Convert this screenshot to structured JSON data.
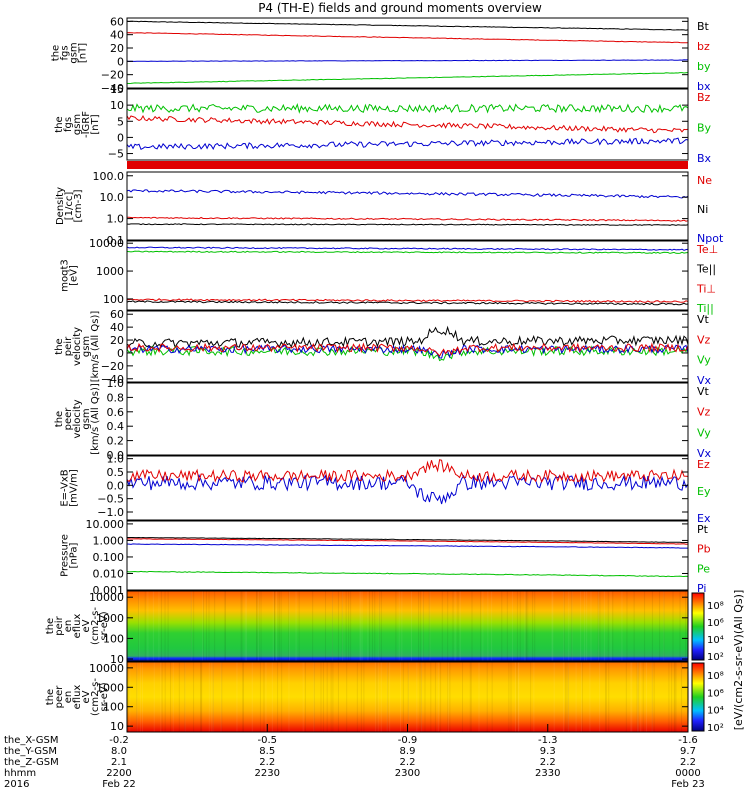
{
  "title": "P4 (TH-E) fields and ground moments overview",
  "colors": {
    "black": "#000000",
    "red": "#e00000",
    "green": "#00c000",
    "blue": "#0000d0"
  },
  "colorbar_label": "[eV/(cm2-s-sr-eV)(All Qs)]",
  "colorbar_ticks": [
    "10⁸",
    "10⁶",
    "10⁴",
    "10²"
  ],
  "x_axis_ticks": [
    "2200",
    "2230",
    "2300",
    "2330",
    "0000"
  ],
  "ephemeris": {
    "rows": [
      {
        "label": "the_X-GSM",
        "values": [
          "-0.2",
          "-0.5",
          "-0.9",
          "-1.3",
          "-1.6"
        ]
      },
      {
        "label": "the_Y-GSM",
        "values": [
          "8.0",
          "8.5",
          "8.9",
          "9.3",
          "9.7"
        ]
      },
      {
        "label": "the_Z-GSM",
        "values": [
          "2.1",
          "2.2",
          "2.2",
          "2.2",
          "2.2"
        ]
      },
      {
        "label": "hhmm",
        "values": [
          "2200",
          "2230",
          "2300",
          "2330",
          "0000"
        ]
      },
      {
        "label": "2016",
        "values": [
          "Feb 22",
          "",
          "",
          "",
          "Feb 23"
        ]
      }
    ]
  },
  "chart_data": [
    {
      "type": "line",
      "ylabel": [
        "the",
        "fgs",
        "gsm",
        "[nT]"
      ],
      "ylim": [
        -40,
        65
      ],
      "yticks": [
        "60",
        "40",
        "20",
        "0",
        "−20",
        "−40"
      ],
      "ytick_values": [
        60,
        40,
        20,
        0,
        -20,
        -40
      ],
      "legend": [
        "Bt",
        "bz",
        "by",
        "bx"
      ],
      "legend_colors": [
        "black",
        "red",
        "green",
        "blue"
      ],
      "series": [
        {
          "name": "Bt",
          "color": "black",
          "start": 60,
          "end": 47,
          "noise": 0.4
        },
        {
          "name": "bz",
          "color": "red",
          "start": 43,
          "end": 28,
          "noise": 0.4
        },
        {
          "name": "by",
          "color": "blue",
          "start": 0,
          "end": 2,
          "noise": 0.3
        },
        {
          "name": "bx",
          "color": "green",
          "start": -33,
          "end": -17,
          "noise": 0.4
        }
      ]
    },
    {
      "type": "line",
      "ylabel": [
        "the",
        "fgs",
        "gsm",
        "-IGRF",
        "[nT]"
      ],
      "ylim": [
        -7,
        15
      ],
      "yticks": [
        "15",
        "10",
        "5",
        "0",
        "−5"
      ],
      "ytick_values": [
        15,
        10,
        5,
        0,
        -5
      ],
      "legend": [
        "Bz",
        "By",
        "Bx"
      ],
      "legend_colors": [
        "red",
        "green",
        "blue"
      ],
      "series": [
        {
          "name": "Bz",
          "color": "red",
          "start": 6,
          "end": 2,
          "noise": 0.8
        },
        {
          "name": "By",
          "color": "green",
          "start": 9,
          "end": 9,
          "noise": 1.2
        },
        {
          "name": "Bx",
          "color": "blue",
          "start": -3,
          "end": -1,
          "noise": 0.9
        }
      ]
    },
    {
      "type": "line",
      "log": true,
      "ylabel": [
        "Density",
        "[1/cc]",
        "[cm-3]"
      ],
      "ylim": [
        0.1,
        150
      ],
      "yticks": [
        "100.0",
        "10.0",
        "1.0",
        "0.1"
      ],
      "ytick_values": [
        100,
        10,
        1,
        0.1
      ],
      "legend": [
        "Ne",
        "Ni",
        "Npot"
      ],
      "legend_colors": [
        "red",
        "black",
        "blue"
      ],
      "series": [
        {
          "name": "Ne",
          "color": "red",
          "start": 1.1,
          "end": 0.8,
          "noise": 0.03
        },
        {
          "name": "Ni",
          "color": "black",
          "start": 0.55,
          "end": 0.5,
          "noise": 0.02
        },
        {
          "name": "Npot",
          "color": "blue",
          "start": 20,
          "end": 10,
          "noise": 0.06
        }
      ]
    },
    {
      "type": "line",
      "log": true,
      "ylabel": [
        "moqt3",
        "[eV]"
      ],
      "ylim": [
        40,
        12000
      ],
      "yticks": [
        "10000",
        "1000",
        "100"
      ],
      "ytick_values": [
        10000,
        1000,
        100
      ],
      "legend": [
        "Te⊥",
        "Te||",
        "Ti⊥",
        "Ti||"
      ],
      "legend_colors": [
        "red",
        "black",
        "red",
        "green"
      ],
      "series": [
        {
          "name": "Te⊥",
          "color": "red",
          "start": 95,
          "end": 80,
          "noise": 0.03
        },
        {
          "name": "Te||",
          "color": "black",
          "start": 80,
          "end": 65,
          "noise": 0.03
        },
        {
          "name": "Ti⊥",
          "color": "blue",
          "start": 7000,
          "end": 5800,
          "noise": 0.02
        },
        {
          "name": "Ti||",
          "color": "green",
          "start": 5000,
          "end": 4500,
          "noise": 0.02
        }
      ]
    },
    {
      "type": "line",
      "ylabel": [
        "the",
        "peir",
        "velocity",
        "gsm",
        "[km/s (All Qs)]"
      ],
      "ylim": [
        -45,
        65
      ],
      "yticks": [
        "60",
        "40",
        "20",
        "0",
        "−20",
        "−40"
      ],
      "ytick_values": [
        60,
        40,
        20,
        0,
        -20,
        -40
      ],
      "legend": [
        "Vt",
        "Vz",
        "Vy",
        "Vx"
      ],
      "legend_colors": [
        "black",
        "red",
        "green",
        "blue"
      ],
      "series": [
        {
          "name": "Vt",
          "color": "black",
          "start": 15,
          "end": 20,
          "noise": 7
        },
        {
          "name": "Vy",
          "color": "green",
          "start": 3,
          "end": 3,
          "noise": 7
        },
        {
          "name": "Vx",
          "color": "blue",
          "start": 6,
          "end": 6,
          "noise": 6
        },
        {
          "name": "Vz",
          "color": "red",
          "start": 8,
          "end": 8,
          "noise": 6
        }
      ]
    },
    {
      "type": "line",
      "ylabel": [
        "the",
        "peer",
        "velocity",
        "gsm",
        "[km/s (All Qs)]"
      ],
      "ylim": [
        0,
        1.0
      ],
      "yticks": [
        "1.0",
        "0.8",
        "0.6",
        "0.4",
        "0.2",
        "0.0"
      ],
      "ytick_values": [
        1.0,
        0.8,
        0.6,
        0.4,
        0.2,
        0.0
      ],
      "legend": [
        "Vt",
        "Vz",
        "Vy",
        "Vx"
      ],
      "legend_colors": [
        "black",
        "red",
        "green",
        "blue"
      ],
      "series": []
    },
    {
      "type": "line",
      "ylabel": [
        "E=-VxB",
        "[mV/m]"
      ],
      "ylim": [
        -1.3,
        1.1
      ],
      "yticks": [
        "1.0",
        "0.5",
        "0.0",
        "−0.5",
        "−1.0"
      ],
      "ytick_values": [
        1.0,
        0.5,
        0.0,
        -0.5,
        -1.0
      ],
      "legend": [
        "Ez",
        "Ey",
        "Ex"
      ],
      "legend_colors": [
        "red",
        "green",
        "blue"
      ],
      "series": [
        {
          "name": "Ex",
          "color": "blue",
          "start": 0.1,
          "end": 0.1,
          "noise": 0.28
        },
        {
          "name": "Ez",
          "color": "red",
          "start": 0.35,
          "end": 0.35,
          "noise": 0.22
        }
      ]
    },
    {
      "type": "line",
      "log": true,
      "ylabel": [
        "Pressure",
        "[nPa]"
      ],
      "ylim": [
        0.001,
        15
      ],
      "yticks": [
        "10.000",
        "1.000",
        "0.100",
        "0.010",
        "0.001"
      ],
      "ytick_values": [
        10,
        1,
        0.1,
        0.01,
        0.001
      ],
      "legend": [
        "Pt",
        "Pb",
        "Pe",
        "Pi"
      ],
      "legend_colors": [
        "black",
        "red",
        "green",
        "blue"
      ],
      "series": [
        {
          "name": "Pt",
          "color": "black",
          "start": 1.5,
          "end": 0.75,
          "noise": 0.01
        },
        {
          "name": "Pb",
          "color": "red",
          "start": 1.25,
          "end": 0.6,
          "noise": 0.01
        },
        {
          "name": "Pi",
          "color": "blue",
          "start": 0.6,
          "end": 0.35,
          "noise": 0.015
        },
        {
          "name": "Pe",
          "color": "green",
          "start": 0.013,
          "end": 0.0065,
          "noise": 0.02
        }
      ]
    },
    {
      "type": "heatmap",
      "log": true,
      "ylabel": [
        "the",
        "peir",
        "en",
        "eflux",
        "eV",
        "(cm2-s-",
        "sr-eV)"
      ],
      "ylim": [
        8,
        20000
      ],
      "yticks": [
        "10000",
        "1000",
        "100",
        "10"
      ],
      "ytick_values": [
        10000,
        1000,
        100,
        10
      ]
    },
    {
      "type": "heatmap",
      "log": true,
      "ylabel": [
        "the",
        "peer",
        "en",
        "eflux",
        "eV",
        "(cm2-s-",
        "sr-eV)"
      ],
      "ylim": [
        5,
        20000
      ],
      "yticks": [
        "10000",
        "1000",
        "100",
        "10"
      ],
      "ytick_values": [
        10000,
        1000,
        100,
        10
      ]
    }
  ]
}
